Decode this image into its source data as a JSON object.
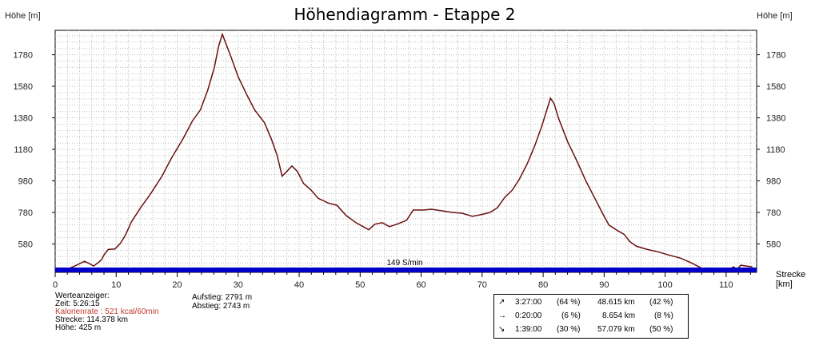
{
  "title": "Höhendiagramm - Etappe 2",
  "y_label_left": "Höhe [m]",
  "y_label_right": "Höhe [m]",
  "x_label": [
    "Strecke",
    "[km]"
  ],
  "speed_label": "149 S/min",
  "info": {
    "heading": "Werteanzeiger:",
    "time": "Zeit: 5:26:15",
    "calories": "Kalorienrate : 521 kcal/60min",
    "distance": "Strecke: 114.378 km",
    "height": "Höhe: 425 m",
    "ascent": "Aufstieg: 2791 m",
    "descent": "Abstieg: 2743 m"
  },
  "stats": [
    {
      "icon": "↗",
      "time": "3:27:00",
      "time_pct": "(64 %)",
      "dist": "48.615 km",
      "dist_pct": "(42 %)"
    },
    {
      "icon": "→",
      "time": "0:20:00",
      "time_pct": "(6 %)",
      "dist": "8.654 km",
      "dist_pct": "(8 %)"
    },
    {
      "icon": "↘",
      "time": "1:39:00",
      "time_pct": "(30 %)",
      "dist": "57.079 km",
      "dist_pct": "(50 %)"
    }
  ],
  "colors": {
    "line": "#6b1010",
    "bar": "#0000c8",
    "grid": "#bdbdbd"
  },
  "chart_data": {
    "type": "area",
    "title": "Höhendiagramm - Etappe 2",
    "xlabel": "Strecke [km]",
    "ylabel": "Höhe [m]",
    "xlim": [
      0,
      115
    ],
    "ylim": [
      400,
      1935
    ],
    "xticks": [
      0,
      10,
      20,
      30,
      40,
      50,
      60,
      70,
      80,
      90,
      100,
      110
    ],
    "yticks": [
      580,
      780,
      980,
      1180,
      1380,
      1580,
      1780
    ],
    "grid": true,
    "series": [
      {
        "values": [
          [
            2,
            420
          ],
          [
            3.5,
            445
          ],
          [
            4.8,
            470
          ],
          [
            5.6,
            455
          ],
          [
            6.3,
            440
          ],
          [
            7,
            460
          ],
          [
            7.6,
            480
          ],
          [
            8,
            510
          ],
          [
            8.7,
            545
          ],
          [
            9.8,
            548
          ],
          [
            10.7,
            585
          ],
          [
            11.5,
            635
          ],
          [
            12.5,
            720
          ],
          [
            14,
            810
          ],
          [
            15.5,
            890
          ],
          [
            17.5,
            1010
          ],
          [
            19,
            1120
          ],
          [
            21,
            1250
          ],
          [
            22.5,
            1360
          ],
          [
            23.8,
            1430
          ],
          [
            25,
            1555
          ],
          [
            26.1,
            1700
          ],
          [
            26.8,
            1835
          ],
          [
            27.4,
            1910
          ],
          [
            27.9,
            1860
          ],
          [
            28.8,
            1770
          ],
          [
            30,
            1640
          ],
          [
            31.5,
            1520
          ],
          [
            32.7,
            1430
          ],
          [
            34.3,
            1350
          ],
          [
            35.5,
            1240
          ],
          [
            36.4,
            1140
          ],
          [
            37.2,
            1010
          ],
          [
            38.1,
            1045
          ],
          [
            38.8,
            1075
          ],
          [
            39.7,
            1040
          ],
          [
            40.7,
            965
          ],
          [
            42,
            920
          ],
          [
            43.1,
            870
          ],
          [
            44.7,
            840
          ],
          [
            46.2,
            825
          ],
          [
            47.7,
            760
          ],
          [
            49.3,
            715
          ],
          [
            50.5,
            690
          ],
          [
            51.4,
            670
          ],
          [
            52.4,
            705
          ],
          [
            53.6,
            715
          ],
          [
            54.8,
            690
          ],
          [
            56,
            705
          ],
          [
            57.6,
            730
          ],
          [
            58.7,
            795
          ],
          [
            60.3,
            795
          ],
          [
            61.7,
            800
          ],
          [
            63.4,
            790
          ],
          [
            65.1,
            780
          ],
          [
            66.7,
            775
          ],
          [
            68.4,
            755
          ],
          [
            69.7,
            765
          ],
          [
            71.3,
            780
          ],
          [
            72.5,
            810
          ],
          [
            73.7,
            875
          ],
          [
            74.9,
            920
          ],
          [
            76.1,
            990
          ],
          [
            77.4,
            1090
          ],
          [
            78.6,
            1200
          ],
          [
            79.8,
            1330
          ],
          [
            80.6,
            1430
          ],
          [
            81.2,
            1505
          ],
          [
            81.8,
            1470
          ],
          [
            82.5,
            1380
          ],
          [
            84,
            1230
          ],
          [
            85.5,
            1110
          ],
          [
            87,
            980
          ],
          [
            88.6,
            860
          ],
          [
            89.8,
            770
          ],
          [
            90.8,
            700
          ],
          [
            92.2,
            665
          ],
          [
            93.3,
            640
          ],
          [
            94.2,
            595
          ],
          [
            95.3,
            565
          ],
          [
            97.1,
            545
          ],
          [
            98.8,
            530
          ],
          [
            100.6,
            510
          ],
          [
            102.5,
            490
          ],
          [
            104.3,
            460
          ],
          [
            105.8,
            430
          ],
          [
            106.5,
            415
          ],
          [
            110.6,
            418
          ],
          [
            111.2,
            435
          ],
          [
            111.8,
            420
          ],
          [
            112.4,
            445
          ],
          [
            113.3,
            440
          ],
          [
            114.3,
            435
          ]
        ]
      }
    ]
  }
}
